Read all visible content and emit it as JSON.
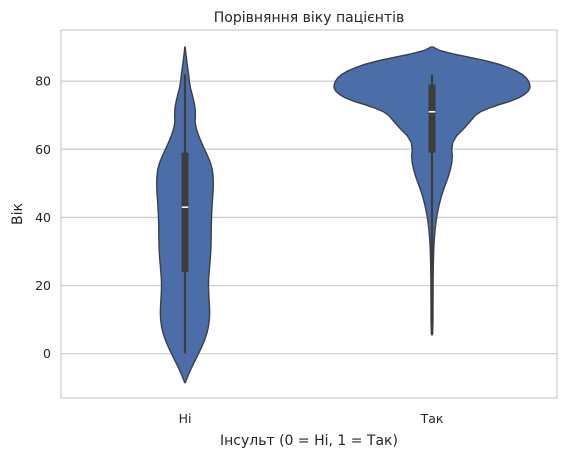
{
  "chart_data": {
    "type": "violin",
    "title": "Порівняння віку пацієнтів",
    "xlabel": "Інсульт (0 = Ні, 1 = Так)",
    "ylabel": "Вік",
    "categories": [
      "Ні",
      "Так"
    ],
    "ylim": [
      -13,
      95
    ],
    "yticks": [
      0,
      20,
      40,
      60,
      80
    ],
    "grid": "horizontal",
    "colors": {
      "fill": "#4c6ea8",
      "edge": "#3a3f4b",
      "box": "#3d3d3d",
      "median": "#ffffff",
      "grid": "#cccccc",
      "axes": "#cccccc"
    },
    "violins": [
      {
        "category": "Ні",
        "min": 0.1,
        "q1": 24,
        "median": 43,
        "q3": 59,
        "max": 82,
        "kde_extent": [
          -8.5,
          90
        ],
        "profile": [
          [
            90,
            0.2
          ],
          [
            88,
            0.9
          ],
          [
            86,
            1.8
          ],
          [
            84,
            2.7
          ],
          [
            82,
            3.6
          ],
          [
            80,
            4.4
          ],
          [
            78,
            5.5
          ],
          [
            76,
            7.3
          ],
          [
            74,
            9.0
          ],
          [
            72,
            10.2
          ],
          [
            70,
            10.5
          ],
          [
            68,
            10.2
          ],
          [
            66,
            11.5
          ],
          [
            64,
            13.8
          ],
          [
            62,
            16.6
          ],
          [
            60,
            19.7
          ],
          [
            58,
            22.9
          ],
          [
            56,
            25.7
          ],
          [
            54,
            27.6
          ],
          [
            52,
            28.4
          ],
          [
            50,
            28.6
          ],
          [
            48,
            28.4
          ],
          [
            46,
            28.0
          ],
          [
            44,
            27.5
          ],
          [
            42,
            27.1
          ],
          [
            40,
            26.8
          ],
          [
            38,
            26.6
          ],
          [
            36,
            26.5
          ],
          [
            34,
            26.4
          ],
          [
            32,
            26.3
          ],
          [
            30,
            26.0
          ],
          [
            28,
            25.6
          ],
          [
            26,
            25.0
          ],
          [
            24,
            24.4
          ],
          [
            22,
            23.9
          ],
          [
            20,
            23.7
          ],
          [
            18,
            23.9
          ],
          [
            16,
            24.3
          ],
          [
            14,
            24.7
          ],
          [
            12,
            24.9
          ],
          [
            10,
            24.6
          ],
          [
            8,
            23.7
          ],
          [
            6,
            22.1
          ],
          [
            4,
            19.8
          ],
          [
            2,
            16.9
          ],
          [
            0,
            13.6
          ],
          [
            -2,
            10.2
          ],
          [
            -4,
            6.8
          ],
          [
            -6,
            3.7
          ],
          [
            -8,
            1.0
          ],
          [
            -8.5,
            0.2
          ]
        ]
      },
      {
        "category": "Так",
        "min": 5.5,
        "q1": 59,
        "median": 71,
        "q3": 79,
        "max": 82,
        "kde_extent": [
          5.5,
          90
        ],
        "profile": [
          [
            90,
            1.0
          ],
          [
            89,
            7.8
          ],
          [
            88,
            20.8
          ],
          [
            87,
            38.0
          ],
          [
            86,
            54.0
          ],
          [
            85,
            67.0
          ],
          [
            84,
            77.0
          ],
          [
            83,
            85.0
          ],
          [
            82,
            91.0
          ],
          [
            81,
            95.0
          ],
          [
            80,
            97.5
          ],
          [
            79,
            98.7
          ],
          [
            78,
            99.0
          ],
          [
            77,
            97.0
          ],
          [
            76,
            93.0
          ],
          [
            75,
            87.0
          ],
          [
            74,
            78.0
          ],
          [
            73,
            67.0
          ],
          [
            72,
            57.0
          ],
          [
            71,
            49.0
          ],
          [
            70,
            44.0
          ],
          [
            68,
            38.0
          ],
          [
            66,
            32.0
          ],
          [
            64,
            25.0
          ],
          [
            62,
            21.0
          ],
          [
            60,
            20.0
          ],
          [
            58,
            20.5
          ],
          [
            56,
            20.0
          ],
          [
            54,
            18.5
          ],
          [
            52,
            16.5
          ],
          [
            50,
            14.0
          ],
          [
            48,
            11.5
          ],
          [
            46,
            9.3
          ],
          [
            44,
            7.5
          ],
          [
            42,
            6.0
          ],
          [
            40,
            4.7
          ],
          [
            38,
            3.7
          ],
          [
            36,
            3.0
          ],
          [
            34,
            2.4
          ],
          [
            32,
            2.0
          ],
          [
            30,
            1.7
          ],
          [
            28,
            1.5
          ],
          [
            26,
            1.3
          ],
          [
            24,
            1.2
          ],
          [
            22,
            1.1
          ],
          [
            20,
            1.1
          ],
          [
            18,
            1.1
          ],
          [
            16,
            1.1
          ],
          [
            14,
            1.0
          ],
          [
            12,
            1.0
          ],
          [
            10,
            1.0
          ],
          [
            8,
            0.8
          ],
          [
            6,
            0.6
          ],
          [
            5.5,
            0.3
          ]
        ]
      }
    ]
  }
}
